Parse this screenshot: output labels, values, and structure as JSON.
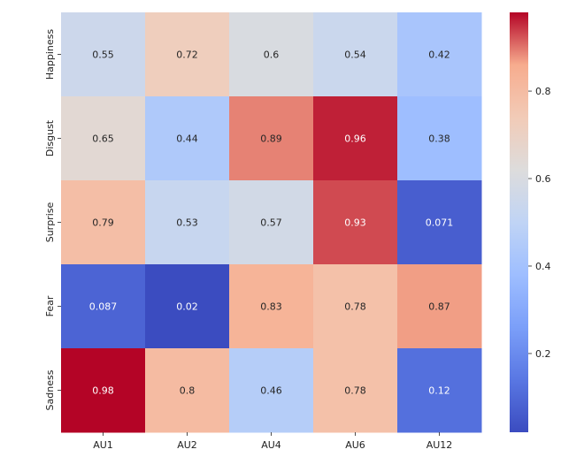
{
  "chart_data": {
    "type": "heatmap",
    "title": "",
    "xlabel": "",
    "ylabel": "",
    "columns": [
      "AU1",
      "AU2",
      "AU4",
      "AU6",
      "AU12"
    ],
    "rows": [
      "Happiness",
      "Disgust",
      "Surprise",
      "Fear",
      "Sadness"
    ],
    "values": [
      [
        0.55,
        0.72,
        0.6,
        0.54,
        0.42
      ],
      [
        0.65,
        0.44,
        0.89,
        0.96,
        0.38
      ],
      [
        0.79,
        0.53,
        0.57,
        0.93,
        0.071
      ],
      [
        0.087,
        0.02,
        0.83,
        0.78,
        0.87
      ],
      [
        0.98,
        0.8,
        0.46,
        0.78,
        0.12
      ]
    ],
    "value_labels": [
      [
        "0.55",
        "0.72",
        "0.6",
        "0.54",
        "0.42"
      ],
      [
        "0.65",
        "0.44",
        "0.89",
        "0.96",
        "0.38"
      ],
      [
        "0.79",
        "0.53",
        "0.57",
        "0.93",
        "0.071"
      ],
      [
        "0.087",
        "0.02",
        "0.83",
        "0.78",
        "0.87"
      ],
      [
        "0.98",
        "0.8",
        "0.46",
        "0.78",
        "0.12"
      ]
    ],
    "colormap": "coolwarm",
    "vmin": 0.02,
    "vmax": 0.98,
    "colorbar": {
      "ticks": [
        0.2,
        0.4,
        0.6,
        0.8
      ],
      "tick_labels": [
        "0.2",
        "0.4",
        "0.6",
        "0.8"
      ]
    },
    "grid": false,
    "legend": "colorbar-right"
  }
}
